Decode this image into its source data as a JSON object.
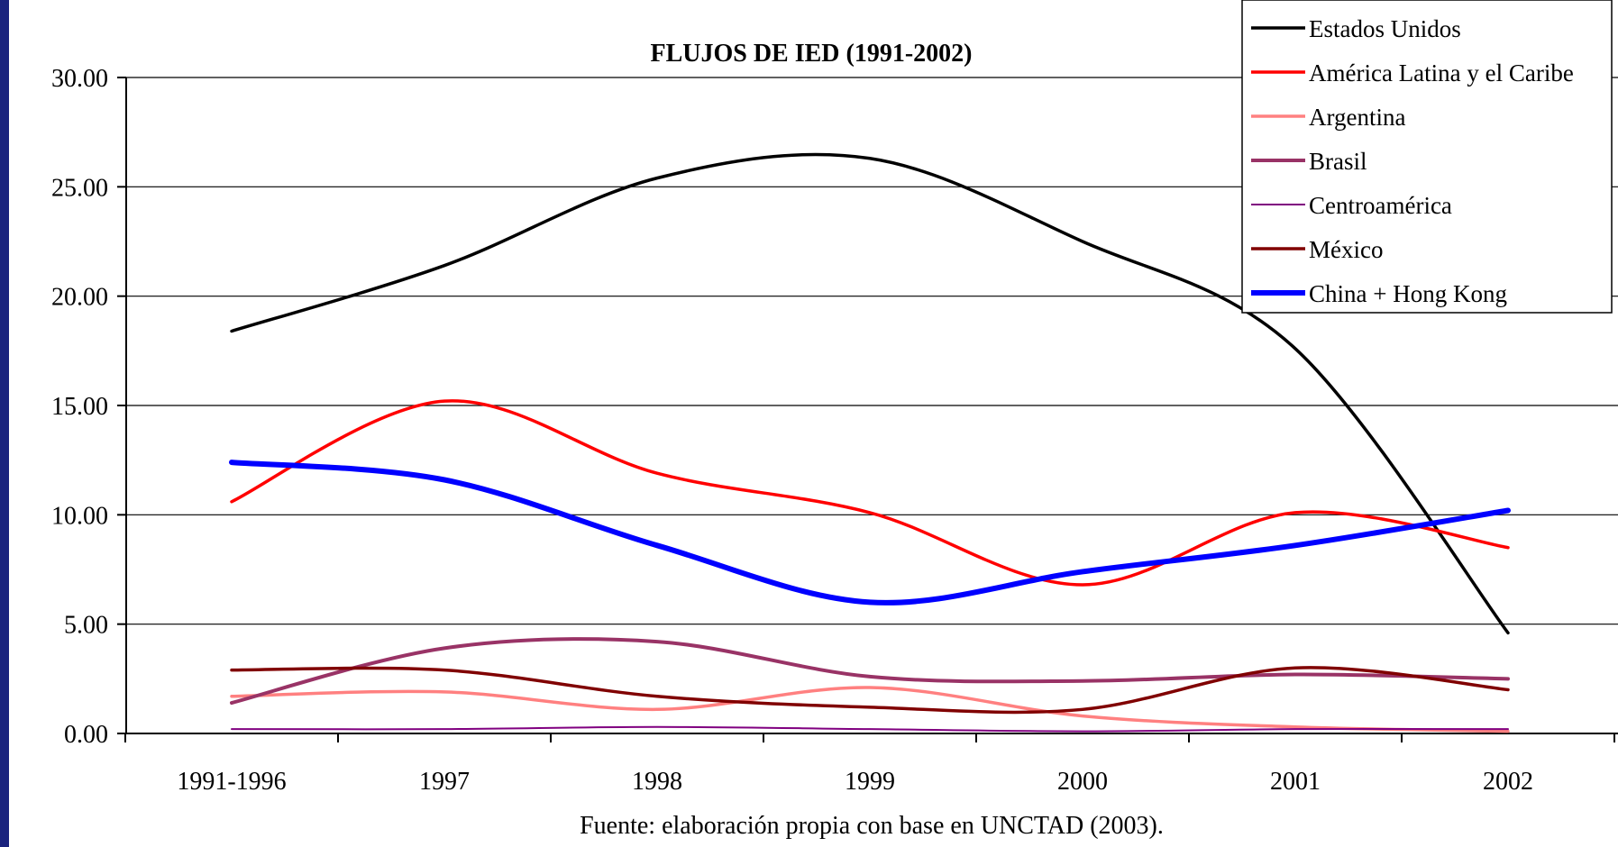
{
  "colors": {
    "frame": "#1a237e",
    "background": "#ffffff",
    "grid": "#000000"
  },
  "chart_data": {
    "type": "line",
    "title": "FLUJOS DE IED (1991-2002)",
    "source": "Fuente: elaboración propia con base en UNCTAD (2003).",
    "categories": [
      "1991-1996",
      "1997",
      "1998",
      "1999",
      "2000",
      "2001",
      "2002"
    ],
    "xlabel": "",
    "ylabel": "",
    "ylim": [
      0,
      30
    ],
    "yticks": [
      "0.00",
      "5.00",
      "10.00",
      "15.00",
      "20.00",
      "25.00",
      "30.00"
    ],
    "grid": true,
    "legend_position": "top-right",
    "series": [
      {
        "name": "Estados Unidos",
        "color": "#000000",
        "width": 3.5,
        "values": [
          18.4,
          21.4,
          25.4,
          26.3,
          22.5,
          17.6,
          4.6
        ]
      },
      {
        "name": "América Latina y el Caribe",
        "color": "#ff0000",
        "width": 3.5,
        "values": [
          10.6,
          15.2,
          11.9,
          10.1,
          6.8,
          10.1,
          8.5
        ]
      },
      {
        "name": "Argentina",
        "color": "#ff8080",
        "width": 3.5,
        "values": [
          1.7,
          1.9,
          1.1,
          2.1,
          0.8,
          0.3,
          0.1
        ]
      },
      {
        "name": "Brasil",
        "color": "#993366",
        "width": 4,
        "values": [
          1.4,
          3.9,
          4.2,
          2.6,
          2.4,
          2.7,
          2.5
        ]
      },
      {
        "name": "Centroamérica",
        "color": "#800080",
        "width": 2,
        "values": [
          0.2,
          0.2,
          0.3,
          0.2,
          0.1,
          0.2,
          0.2
        ]
      },
      {
        "name": "México",
        "color": "#800000",
        "width": 3.5,
        "values": [
          2.9,
          2.9,
          1.7,
          1.2,
          1.1,
          3.0,
          2.0
        ]
      },
      {
        "name": "China + Hong Kong",
        "color": "#0000ff",
        "width": 6,
        "values": [
          12.4,
          11.6,
          8.6,
          6.0,
          7.4,
          8.6,
          10.2
        ]
      }
    ]
  }
}
